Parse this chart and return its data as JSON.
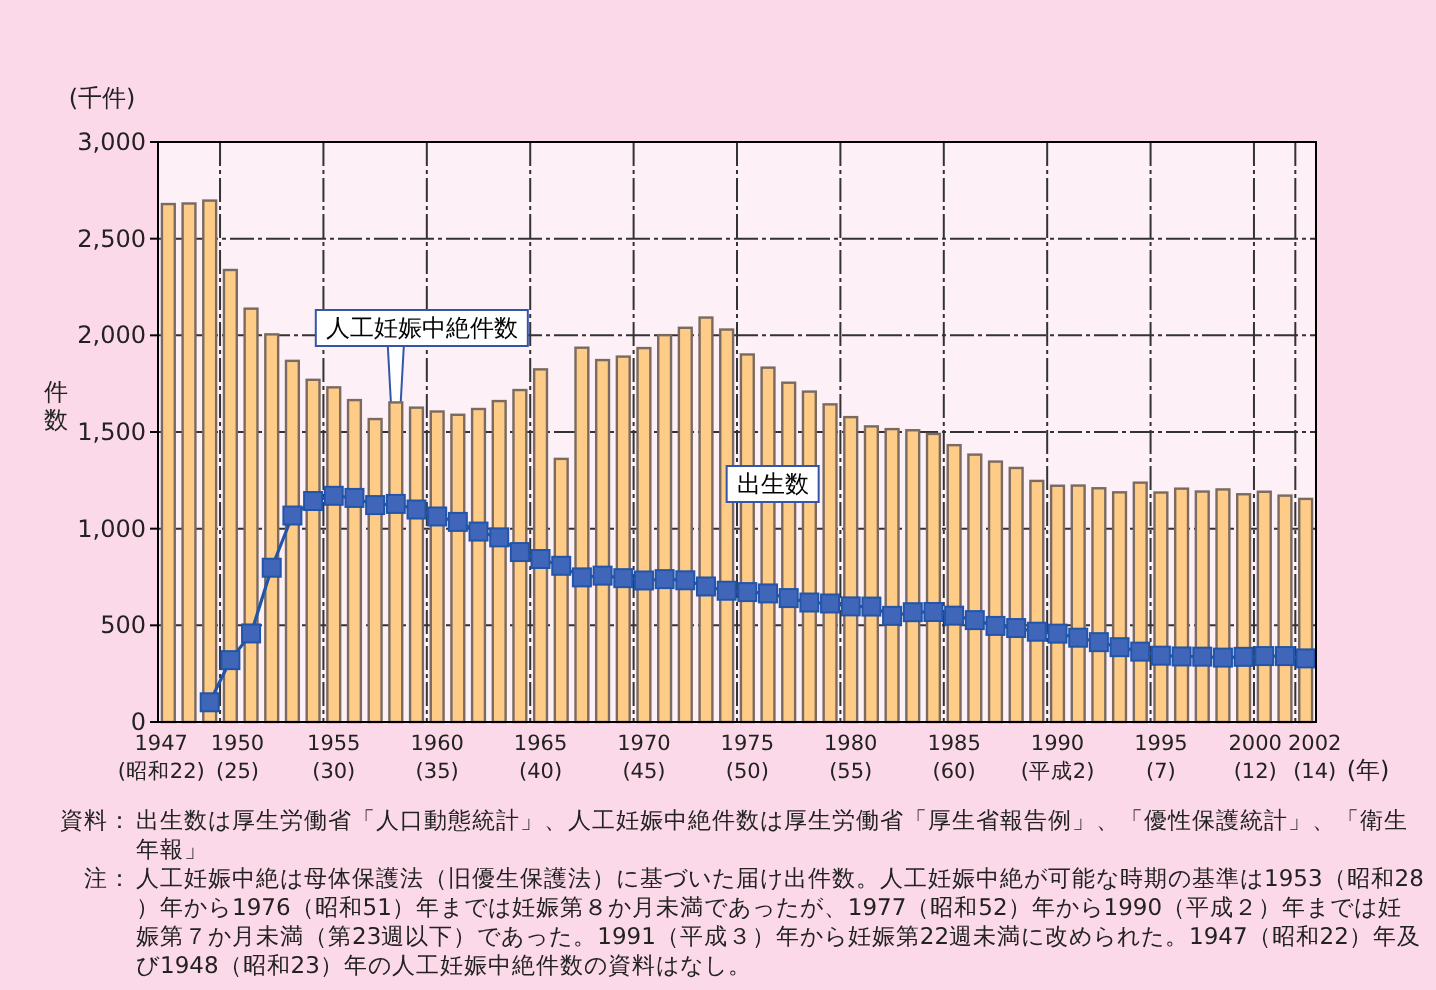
{
  "chart_data": {
    "type": "bar",
    "ylabel": "件数",
    "xlabel": "(年)",
    "categories": [
      "1947(昭和22)",
      null,
      null,
      "1950(25)",
      null,
      null,
      null,
      null,
      "1955(30)",
      null,
      null,
      null,
      null,
      "1960(35)",
      null,
      null,
      null,
      null,
      "1965(40)",
      null,
      null,
      null,
      null,
      "1970(45)",
      null,
      null,
      null,
      null,
      "1975(50)",
      null,
      null,
      null,
      null,
      "1980(55)",
      null,
      null,
      null,
      null,
      "1985(60)",
      null,
      null,
      null,
      null,
      "1990(平成2)",
      null,
      null,
      null,
      null,
      "1995(7)",
      null,
      null,
      null,
      null,
      "2000(12)",
      null,
      "2002(14)"
    ],
    "series": [
      {
        "name": "出生数",
        "color": "#ffcc88",
        "values": [
          2679,
          2682,
          2697,
          2338,
          2138,
          2005,
          1868,
          1770,
          1731,
          1665,
          1567,
          1653,
          1626,
          1606,
          1589,
          1619,
          1660,
          1717,
          1824,
          1361,
          1936,
          1872,
          1890,
          1934,
          2001,
          2039,
          2092,
          2030,
          1901,
          1833,
          1755,
          1709,
          1643,
          1577,
          1529,
          1515,
          1509,
          1490,
          1432,
          1383,
          1347,
          1314,
          1247,
          1222,
          1223,
          1209,
          1188,
          1238,
          1187,
          1207,
          1192,
          1203,
          1178,
          1191,
          1171,
          1154
        ]
      },
      {
        "name": "人工妊娠中絶件数",
        "type": "line",
        "color": "#2255aa",
        "values": [
          null,
          null,
          102,
          320,
          458,
          798,
          1068,
          1143,
          1170,
          1159,
          1122,
          1128,
          1099,
          1063,
          1035,
          985,
          955,
          879,
          843,
          808,
          748,
          757,
          744,
          732,
          739,
          733,
          701,
          679,
          672,
          665,
          641,
          618,
          613,
          598,
          597,
          549,
          568,
          569,
          550,
          527,
          497,
          486,
          467,
          457,
          436,
          413,
          387,
          364,
          343,
          339,
          338,
          333,
          337,
          341,
          341,
          329
        ]
      }
    ],
    "ylim": [
      0,
      3000
    ],
    "yticks": [
      0,
      {
        "value": 500,
        "label": "500"
      },
      {
        "value": 1000,
        "label": "1,000"
      },
      {
        "value": 1500,
        "label": "1,500"
      },
      {
        "value": 2000,
        "label": "2,000"
      },
      {
        "value": 2500,
        "label": "2,500"
      },
      {
        "value": 3000,
        "label": "3,000"
      }
    ],
    "grid": true,
    "legend": false,
    "marker": "square",
    "line_style": "solid",
    "annotations": [
      "(千件)",
      "資料：出生数は厚生労働省「人口動態統計」、人工妊娠中絶件数は厚生労働省「厚生省報告例」、「優性保護統計」、「衛生年報」",
      "注：人工妊娠中絶は母体保護法（旧優生保護法）に基づいた届け出件数。人工妊娠中絶が可能な時期の基準は1953（昭和28）年から1976（昭和51）年までは妊娠第８か月未満であったが、1977（昭和52）年から1990（平成２）年までは妊娠第７か月未満（第23週以下）であった。1991（平成３）年から妊娠第22週未満に改められた。1947（昭和22）年及び1948（昭和23）年の人工妊娠中絶件数の資料はなし。"
    ]
  }
}
